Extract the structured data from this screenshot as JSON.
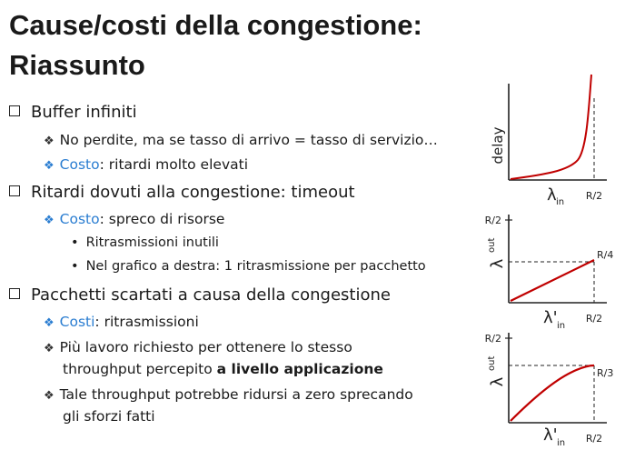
{
  "title": {
    "line1": "Cause/costi della congestione:",
    "line2": "Riassunto"
  },
  "bullets": {
    "b1": {
      "text": "Buffer infiniti",
      "sub1": "No perdite, ma se tasso di arrivo = tasso di servizio…",
      "sub2_label": "Costo",
      "sub2_text": ": ritardi molto elevati"
    },
    "b2": {
      "text": "Ritardi dovuti alla congestione: timeout",
      "sub1_label": "Costo",
      "sub1_text": ": spreco di risorse",
      "item1": "Ritrasmissioni inutili",
      "item2": "Nel grafico a destra: 1 ritrasmissione per pacchetto"
    },
    "b3": {
      "text": "Pacchetti scartati a causa della congestione",
      "sub1_label": "Costi",
      "sub1_text": ": ritrasmissioni",
      "sub2_line1": "Più lavoro richiesto per ottenere lo stesso",
      "sub2_line2_plain": "throughput percepito ",
      "sub2_line2_bold": "a livello applicazione",
      "sub3_line1": "Tale throughput potrebbe ridursi a zero sprecando",
      "sub3_line2": "gli sforzi fatti"
    }
  },
  "charts": {
    "delay": {
      "ylabel": "delay",
      "xlabel": "λ",
      "xlabel_sub": "in",
      "xtick": "R/2"
    },
    "timeout": {
      "ylabel": "λ",
      "ylabel_sub": "out",
      "xlabel": "λ'",
      "xlabel_sub": "in",
      "ytick_top": "R/2",
      "ytick_level": "R/4",
      "xtick": "R/2"
    },
    "loss": {
      "ylabel": "λ",
      "ylabel_sub": "out",
      "xlabel": "λ'",
      "xlabel_sub": "in",
      "ytick_top": "R/2",
      "ytick_level": "R/3",
      "xtick": "R/2"
    }
  },
  "chart_data": [
    {
      "type": "line",
      "x": [
        0,
        0.1,
        0.2,
        0.3,
        0.35,
        0.4,
        0.44,
        0.47,
        0.49,
        0.5
      ],
      "y": [
        0.05,
        0.06,
        0.08,
        0.12,
        0.16,
        0.22,
        0.35,
        0.55,
        0.8,
        1.0
      ],
      "ylabel": "delay",
      "xlabel": "λin",
      "xticks": [
        "R/2"
      ],
      "asymptote_x": "R/2",
      "color": "#c00000"
    },
    {
      "type": "line",
      "x": [
        0,
        0.5
      ],
      "y": [
        0,
        0.25
      ],
      "ylabel": "λout",
      "xlabel": "λ'in",
      "xticks": [
        "R/2"
      ],
      "yticks": [
        "R/2",
        "R/4"
      ],
      "color": "#c00000"
    },
    {
      "type": "line",
      "x": [
        0,
        0.1,
        0.2,
        0.3,
        0.4,
        0.45,
        0.5
      ],
      "y": [
        0,
        0.1,
        0.18,
        0.25,
        0.3,
        0.32,
        0.333
      ],
      "ylabel": "λout",
      "xlabel": "λ'in",
      "xticks": [
        "R/2"
      ],
      "yticks": [
        "R/2",
        "R/3"
      ],
      "color": "#c00000"
    }
  ]
}
